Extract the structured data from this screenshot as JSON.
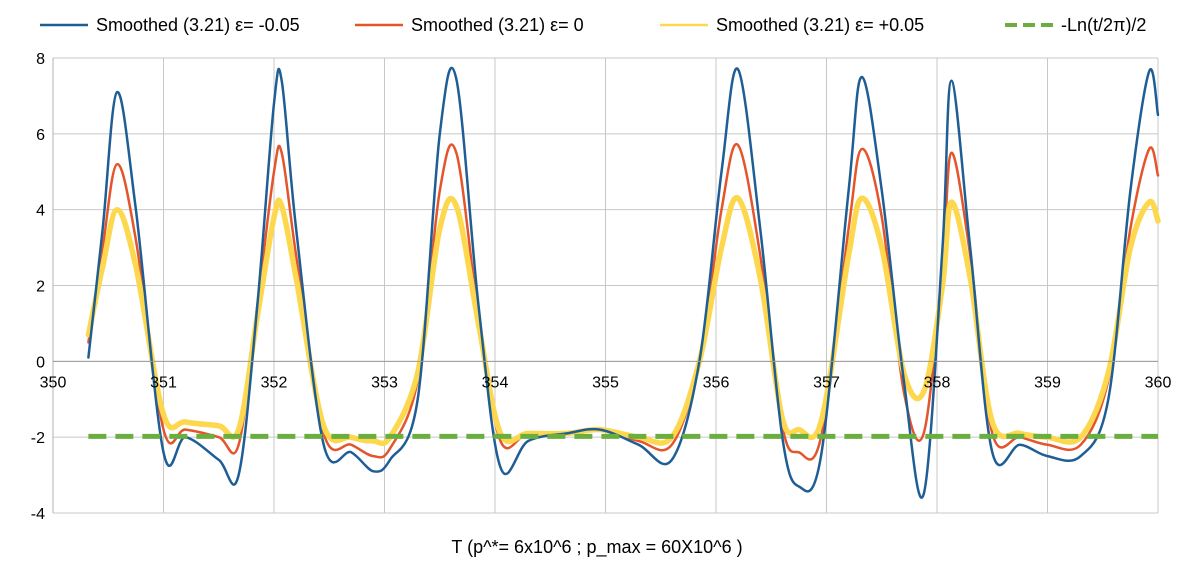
{
  "chart_data": {
    "type": "line",
    "xlabel": "T (p^*= 6x10^6 ; p_max = 60X10^6 )",
    "ylabel": "",
    "xlim": [
      350,
      360
    ],
    "ylim": [
      -4,
      8
    ],
    "grid": true,
    "legend_position": "top",
    "x_ticks": [
      "350",
      "351",
      "352",
      "353",
      "354",
      "355",
      "356",
      "357",
      "358",
      "359",
      "360"
    ],
    "y_ticks": [
      "8",
      "6",
      "4",
      "2",
      "0",
      "-2",
      "-4"
    ],
    "series": [
      {
        "name": "Smoothed (3.21) ε= -0.05",
        "color": "#1F5E95",
        "x": [
          350.32,
          350.45,
          350.58,
          350.75,
          351.0,
          351.2,
          351.5,
          351.68,
          351.85,
          352.0,
          352.07,
          352.2,
          352.45,
          352.7,
          352.9,
          353.05,
          353.3,
          353.5,
          353.65,
          353.85,
          354.05,
          354.3,
          354.65,
          354.95,
          355.3,
          355.6,
          355.85,
          356.05,
          356.2,
          356.4,
          356.6,
          356.75,
          356.95,
          357.2,
          357.32,
          357.5,
          357.7,
          357.88,
          358.05,
          358.13,
          358.3,
          358.5,
          358.75,
          359.0,
          359.3,
          359.55,
          359.75,
          359.92,
          360.0
        ],
        "values": [
          0.1,
          3.5,
          7.1,
          4.0,
          -2.4,
          -2.0,
          -2.6,
          -3.0,
          1.5,
          6.8,
          7.4,
          3.5,
          -2.2,
          -2.4,
          -2.9,
          -2.6,
          -1.0,
          6.0,
          7.45,
          1.5,
          -2.8,
          -2.1,
          -1.9,
          -1.8,
          -2.2,
          -2.6,
          0.0,
          5.0,
          7.7,
          3.5,
          -2.0,
          -3.3,
          -2.5,
          4.5,
          7.5,
          4.5,
          -0.5,
          -3.5,
          3.0,
          7.4,
          3.0,
          -2.4,
          -2.2,
          -2.5,
          -2.5,
          -1.0,
          4.5,
          7.65,
          6.5
        ]
      },
      {
        "name": "Smoothed (3.21) ε= 0",
        "color": "#E4552B",
        "x": [
          350.32,
          350.45,
          350.58,
          350.75,
          351.0,
          351.2,
          351.5,
          351.68,
          351.85,
          352.0,
          352.07,
          352.2,
          352.45,
          352.7,
          352.9,
          353.05,
          353.3,
          353.5,
          353.65,
          353.85,
          354.05,
          354.3,
          354.65,
          354.95,
          355.3,
          355.6,
          355.85,
          356.05,
          356.2,
          356.4,
          356.6,
          356.75,
          356.95,
          357.2,
          357.32,
          357.5,
          357.7,
          357.88,
          358.05,
          358.13,
          358.3,
          358.5,
          358.75,
          359.0,
          359.3,
          359.55,
          359.75,
          359.92,
          360.0
        ],
        "values": [
          0.5,
          3.0,
          5.2,
          3.2,
          -1.8,
          -1.8,
          -2.0,
          -2.2,
          1.5,
          5.0,
          5.5,
          2.8,
          -1.9,
          -2.2,
          -2.5,
          -2.3,
          -0.5,
          4.5,
          5.5,
          1.2,
          -2.1,
          -1.9,
          -1.9,
          -1.8,
          -2.1,
          -2.2,
          0.0,
          4.0,
          5.7,
          2.8,
          -1.7,
          -2.4,
          -2.0,
          3.5,
          5.6,
          3.8,
          -0.8,
          -1.9,
          2.5,
          5.5,
          2.8,
          -1.9,
          -2.0,
          -2.2,
          -2.2,
          -0.5,
          3.5,
          5.6,
          4.9
        ]
      },
      {
        "name": "Smoothed (3.21) ε= +0.05",
        "color": "#FDD84E",
        "x": [
          350.32,
          350.45,
          350.58,
          350.75,
          351.0,
          351.2,
          351.5,
          351.68,
          351.85,
          352.0,
          352.07,
          352.2,
          352.45,
          352.7,
          352.9,
          353.05,
          353.3,
          353.5,
          353.65,
          353.85,
          354.05,
          354.3,
          354.65,
          354.95,
          355.3,
          355.6,
          355.85,
          356.05,
          356.2,
          356.4,
          356.6,
          356.75,
          356.95,
          357.2,
          357.32,
          357.5,
          357.7,
          357.88,
          358.05,
          358.13,
          358.3,
          358.5,
          358.75,
          359.0,
          359.3,
          359.55,
          359.75,
          359.92,
          360.0
        ],
        "values": [
          0.7,
          2.5,
          4.0,
          2.5,
          -1.4,
          -1.6,
          -1.7,
          -1.8,
          1.2,
          3.8,
          4.1,
          2.2,
          -1.7,
          -2.0,
          -2.1,
          -2.0,
          -0.3,
          3.5,
          4.1,
          1.0,
          -1.9,
          -1.9,
          -1.9,
          -1.8,
          -2.0,
          -2.0,
          0.0,
          3.0,
          4.3,
          2.2,
          -1.5,
          -1.8,
          -1.6,
          2.8,
          4.3,
          3.0,
          -0.3,
          -0.8,
          2.0,
          4.2,
          2.2,
          -1.6,
          -1.9,
          -2.0,
          -2.0,
          -0.3,
          3.0,
          4.2,
          3.7
        ]
      },
      {
        "name": "-Ln(t/2π)/2",
        "color": "#6AAE3F",
        "dashed": true,
        "x": [
          350.32,
          360.0
        ],
        "values": [
          -1.98,
          -1.98
        ]
      }
    ]
  }
}
